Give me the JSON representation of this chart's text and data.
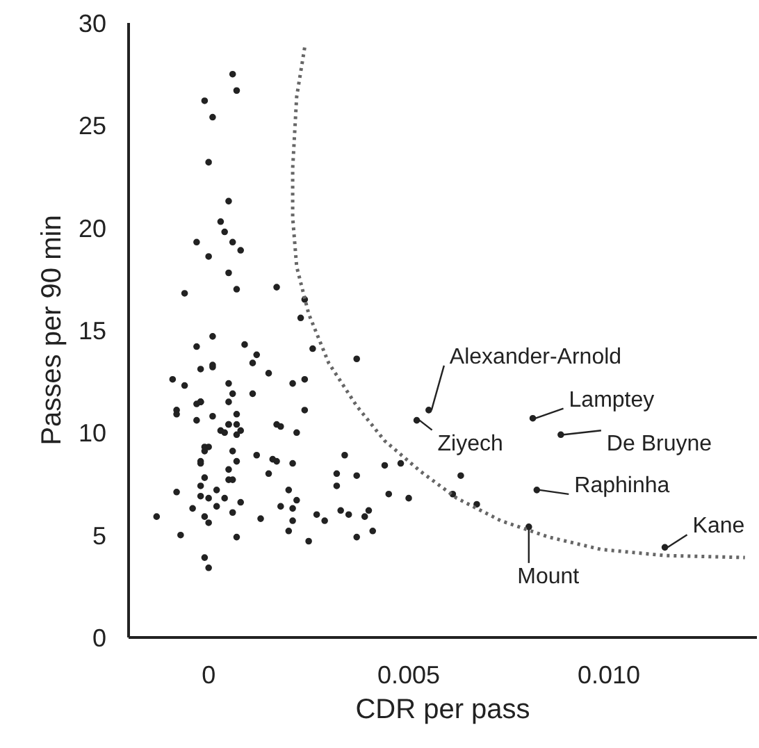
{
  "chart_data": {
    "type": "scatter",
    "xlabel": "CDR per pass",
    "ylabel": "Passes per 90 min",
    "xlim": [
      -0.002,
      0.0137
    ],
    "ylim": [
      0,
      30
    ],
    "xticks": [
      0,
      0.005,
      {
        "value": 0.01,
        "label": "0.010"
      }
    ],
    "yticks": [
      0,
      5,
      10,
      15,
      20,
      25,
      30
    ],
    "grid": false,
    "marker": "circle",
    "series": [
      {
        "color": "#222222",
        "x": [
          0.0006,
          0.0007,
          -0.0001,
          0.0001,
          0,
          0.0005,
          0.0003,
          0.0004,
          -0.0003,
          0,
          0.0006,
          0.0008,
          0.0005,
          0.0007,
          -0.0006,
          0.0017,
          0.0024,
          0.0023,
          0.0026,
          0.0037,
          0.0001,
          -0.0003,
          0.0009,
          0.0012,
          0.0011,
          -0.0002,
          0.0001,
          0.0001,
          -0.0009,
          -0.0006,
          0.0005,
          0.0015,
          0.0021,
          0.0024,
          -0.0002,
          -0.0002,
          -0.0003,
          -0.0002,
          -0.0008,
          -0.0008,
          0.0006,
          0.0005,
          0.0011,
          0.0001,
          -0.0003,
          0.0024,
          0.0007,
          0.0003,
          0.0004,
          0.0005,
          0.0005,
          0.0007,
          0.0008,
          0.0007,
          0.0017,
          0.0018,
          0.0022,
          -0.0001,
          0,
          -0.0001,
          0.0006,
          0.0012,
          0.0016,
          0.0017,
          0.0021,
          -0.0002,
          -0.0002,
          0.0007,
          0.0005,
          0.0005,
          0.0006,
          0.0015,
          0.0034,
          0.0032,
          0.0037,
          0.0044,
          0.0048,
          -0.0008,
          -0.0002,
          -0.0001,
          -0.0002,
          0.0002,
          0.0004,
          0.0008,
          0.002,
          0.0022,
          0.0032,
          0.0045,
          0.005,
          -0.0004,
          0,
          0.0002,
          0.0006,
          0.0018,
          0.0021,
          0.0033,
          0.0035,
          0.004,
          0.0039,
          0.0027,
          0.0029,
          -0.0013,
          -0.0001,
          0,
          0.0013,
          0.0021,
          -0.0007,
          0.0007,
          0.002,
          0.0025,
          0.0037,
          0.0041,
          -0.0001,
          0,
          0.0063,
          0.0061,
          0.0067,
          0.0055,
          0.0052,
          0.0081,
          0.0088,
          0.0082,
          0.008,
          0.0114
        ],
        "values": [
          27.5,
          26.7,
          26.2,
          25.4,
          23.2,
          21.3,
          20.3,
          19.8,
          19.3,
          18.6,
          19.3,
          18.9,
          17.8,
          17.0,
          16.8,
          17.1,
          16.5,
          15.6,
          14.1,
          13.6,
          14.7,
          14.2,
          14.3,
          13.8,
          13.4,
          13.1,
          13.2,
          13.3,
          12.6,
          12.3,
          12.4,
          12.9,
          12.4,
          12.6,
          11.5,
          11.5,
          11.4,
          11.5,
          11.1,
          10.9,
          11.9,
          11.5,
          11.9,
          10.8,
          10.6,
          11.1,
          10.9,
          10.1,
          10.0,
          10.4,
          10.4,
          10.4,
          10.1,
          9.9,
          10.4,
          10.3,
          10.0,
          9.3,
          9.3,
          9.1,
          9.1,
          8.9,
          8.7,
          8.6,
          8.5,
          8.6,
          8.5,
          8.6,
          8.2,
          7.7,
          7.7,
          8.0,
          8.9,
          8.0,
          7.9,
          8.4,
          8.5,
          7.1,
          7.4,
          7.8,
          6.9,
          7.2,
          6.8,
          6.6,
          7.2,
          6.7,
          7.4,
          7.0,
          6.8,
          6.3,
          6.8,
          6.4,
          6.1,
          6.4,
          6.3,
          6.2,
          6.0,
          6.2,
          5.9,
          6.0,
          5.7,
          5.9,
          5.9,
          5.6,
          5.8,
          5.7,
          5.0,
          4.9,
          5.2,
          4.7,
          4.9,
          5.2,
          3.9,
          3.4,
          7.9,
          7.0,
          6.5,
          11.1,
          10.6,
          10.7,
          9.9,
          7.2,
          5.4,
          4.4
        ]
      },
      {
        "type": "line",
        "color": "#666666",
        "line_style": "dotted",
        "marker": "none",
        "x": [
          0.0024,
          0.0022,
          0.0021,
          0.0021,
          0.0022,
          0.0025,
          0.003,
          0.0037,
          0.0044,
          0.0053,
          0.0062,
          0.0073,
          0.0085,
          0.0098,
          0.0114,
          0.0134
        ],
        "values": [
          28.8,
          26.4,
          22.9,
          20.5,
          18.1,
          15.8,
          13.4,
          11.3,
          9.6,
          8.1,
          6.8,
          5.7,
          4.9,
          4.3,
          4.0,
          3.9
        ]
      }
    ],
    "annotations": [
      {
        "text": "Alexander-Arnold",
        "x": 0.0055,
        "y": 11.1
      },
      {
        "text": "Ziyech",
        "x": 0.0052,
        "y": 10.6
      },
      {
        "text": "Lamptey",
        "x": 0.0081,
        "y": 10.7
      },
      {
        "text": "De Bruyne",
        "x": 0.0088,
        "y": 9.9
      },
      {
        "text": "Raphinha",
        "x": 0.0082,
        "y": 7.2
      },
      {
        "text": "Mount",
        "x": 0.008,
        "y": 5.4
      },
      {
        "text": "Kane",
        "x": 0.0114,
        "y": 4.4
      }
    ]
  }
}
